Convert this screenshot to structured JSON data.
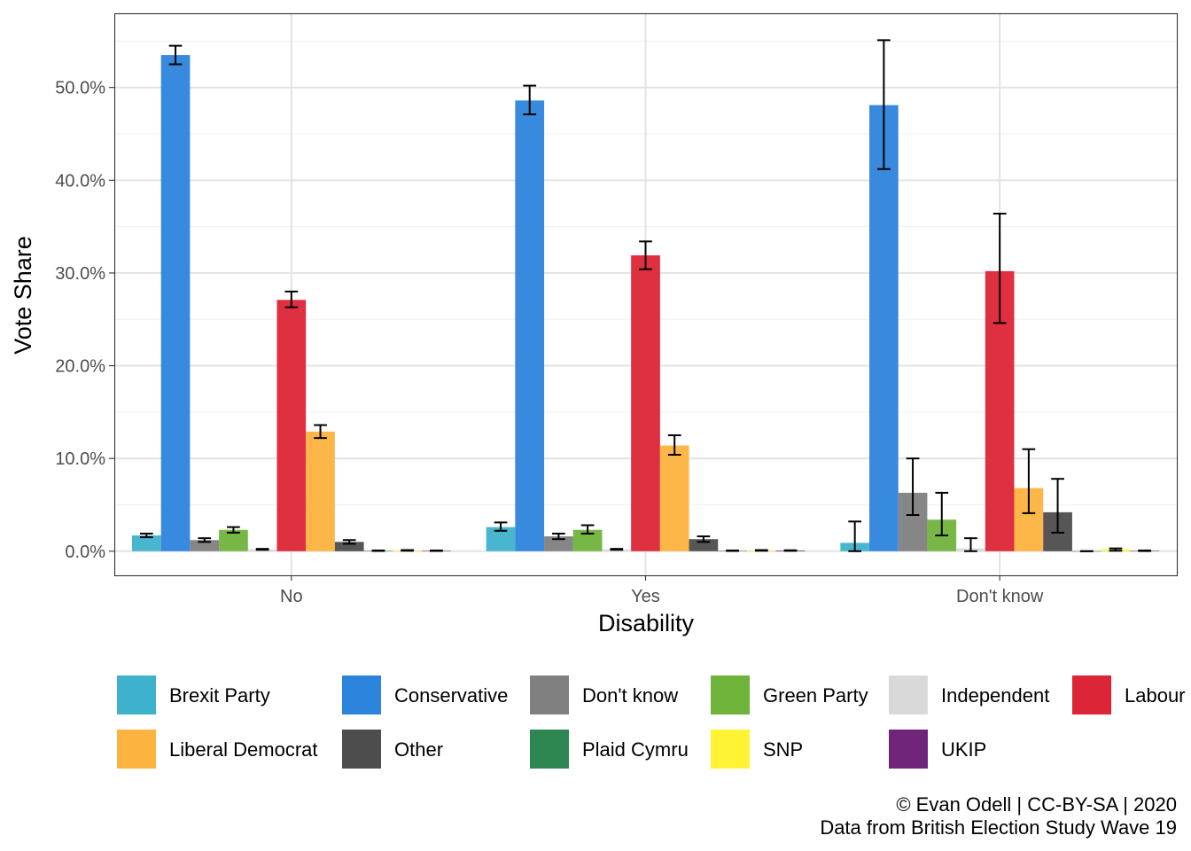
{
  "chart_data": {
    "type": "bar",
    "xlabel": "Disability",
    "ylabel": "Vote Share",
    "categories": [
      "No",
      "Yes",
      "Don't know"
    ],
    "ylim": [
      -0.026,
      0.58
    ],
    "yticks": [
      0,
      0.1,
      0.2,
      0.3,
      0.4,
      0.5
    ],
    "ytick_labels": [
      "0.0%",
      "10.0%",
      "20.0%",
      "30.0%",
      "40.0%",
      "50.0%"
    ],
    "grid": true,
    "legend_position": "bottom",
    "series": [
      {
        "name": "Brexit Party",
        "color": "#3EB2CC",
        "values": [
          0.017,
          0.026,
          0.009
        ],
        "err_low": [
          0.015,
          0.022,
          0.0
        ],
        "err_high": [
          0.019,
          0.031,
          0.032
        ]
      },
      {
        "name": "Conservative",
        "color": "#2D84DC",
        "values": [
          0.535,
          0.486,
          0.481
        ],
        "err_low": [
          0.525,
          0.471,
          0.412
        ],
        "err_high": [
          0.545,
          0.502,
          0.551
        ]
      },
      {
        "name": "Don't know",
        "color": "#808080",
        "values": [
          0.012,
          0.016,
          0.063
        ],
        "err_low": [
          0.01,
          0.013,
          0.039
        ],
        "err_high": [
          0.014,
          0.019,
          0.1
        ]
      },
      {
        "name": "Green Party",
        "color": "#6FB33B",
        "values": [
          0.023,
          0.023,
          0.034
        ],
        "err_low": [
          0.02,
          0.019,
          0.017
        ],
        "err_high": [
          0.026,
          0.028,
          0.063
        ]
      },
      {
        "name": "Independent",
        "color": "#D9D9D9",
        "values": [
          0.002,
          0.002,
          0.003
        ],
        "err_low": [
          0.0015,
          0.0015,
          0.0
        ],
        "err_high": [
          0.0025,
          0.0025,
          0.014
        ]
      },
      {
        "name": "Labour",
        "color": "#DC2537",
        "values": [
          0.271,
          0.319,
          0.302
        ],
        "err_low": [
          0.263,
          0.304,
          0.246
        ],
        "err_high": [
          0.28,
          0.334,
          0.364
        ]
      },
      {
        "name": "Liberal Democrat",
        "color": "#FDB33F",
        "values": [
          0.129,
          0.114,
          0.068
        ],
        "err_low": [
          0.122,
          0.104,
          0.041
        ],
        "err_high": [
          0.136,
          0.125,
          0.11
        ]
      },
      {
        "name": "Other",
        "color": "#4D4D4D",
        "values": [
          0.01,
          0.013,
          0.042
        ],
        "err_low": [
          0.008,
          0.01,
          0.02
        ],
        "err_high": [
          0.012,
          0.016,
          0.078
        ]
      },
      {
        "name": "Plaid Cymru",
        "color": "#2E8750",
        "values": [
          0.0005,
          0.0005,
          0.0
        ],
        "err_low": [
          0.0003,
          0.0003,
          0.0
        ],
        "err_high": [
          0.0008,
          0.0008,
          0.0
        ]
      },
      {
        "name": "SNP",
        "color": "#FFF333",
        "values": [
          0.0008,
          0.0008,
          0.002
        ],
        "err_low": [
          0.0005,
          0.0005,
          0.0005
        ],
        "err_high": [
          0.0012,
          0.0012,
          0.003
        ]
      },
      {
        "name": "UKIP",
        "color": "#70247A",
        "values": [
          0.0005,
          0.0007,
          0.0005
        ],
        "err_low": [
          0.0003,
          0.0004,
          0.0002
        ],
        "err_high": [
          0.0008,
          0.001,
          0.0008
        ]
      }
    ]
  },
  "legend": {
    "rows": [
      [
        {
          "label": "Brexit Party",
          "color": "#3EB2CC"
        },
        {
          "label": "Conservative",
          "color": "#2D84DC"
        },
        {
          "label": "Don't know",
          "color": "#808080"
        },
        {
          "label": "Green Party",
          "color": "#6FB33B"
        },
        {
          "label": "Independent",
          "color": "#D9D9D9"
        },
        {
          "label": "Labour",
          "color": "#DC2537"
        }
      ],
      [
        {
          "label": "Liberal Democrat",
          "color": "#FDB33F"
        },
        {
          "label": "Other",
          "color": "#4D4D4D"
        },
        {
          "label": "Plaid Cymru",
          "color": "#2E8750"
        },
        {
          "label": "SNP",
          "color": "#FFF333"
        },
        {
          "label": "UKIP",
          "color": "#70247A"
        }
      ]
    ]
  },
  "caption": {
    "line1": "© Evan Odell | CC-BY-SA | 2020",
    "line2": "Data from British Election Study Wave 19"
  }
}
